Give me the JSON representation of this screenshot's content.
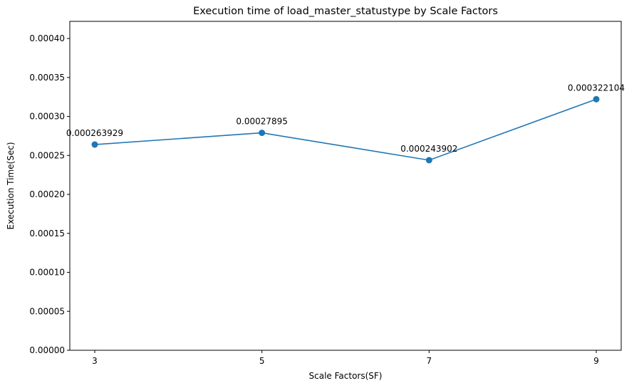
{
  "chart_data": {
    "type": "line",
    "title": "Execution time of load_master_statustype by Scale Factors",
    "xlabel": "Scale Factors(SF)",
    "ylabel": "Execution Time(Sec)",
    "categories": [
      "3",
      "5",
      "7",
      "9"
    ],
    "series": [
      {
        "values": [
          0.000263929,
          0.00027895,
          0.000243902,
          0.000322104
        ],
        "data_labels": [
          "0.000263929",
          "0.00027895",
          "0.000243902",
          "0.000322104"
        ],
        "color": "#1f77b4",
        "marker": "circle"
      }
    ],
    "ylim": [
      0,
      0.000422
    ],
    "yticks": [
      {
        "value": 0,
        "label": "0.00000"
      },
      {
        "value": 5e-05,
        "label": "0.00005"
      },
      {
        "value": 0.0001,
        "label": "0.00010"
      },
      {
        "value": 0.00015,
        "label": "0.00015"
      },
      {
        "value": 0.0002,
        "label": "0.00020"
      },
      {
        "value": 0.00025,
        "label": "0.00025"
      },
      {
        "value": 0.0003,
        "label": "0.00030"
      },
      {
        "value": 0.00035,
        "label": "0.00035"
      },
      {
        "value": 0.0004,
        "label": "0.00040"
      }
    ],
    "grid": false,
    "legend": "none"
  }
}
